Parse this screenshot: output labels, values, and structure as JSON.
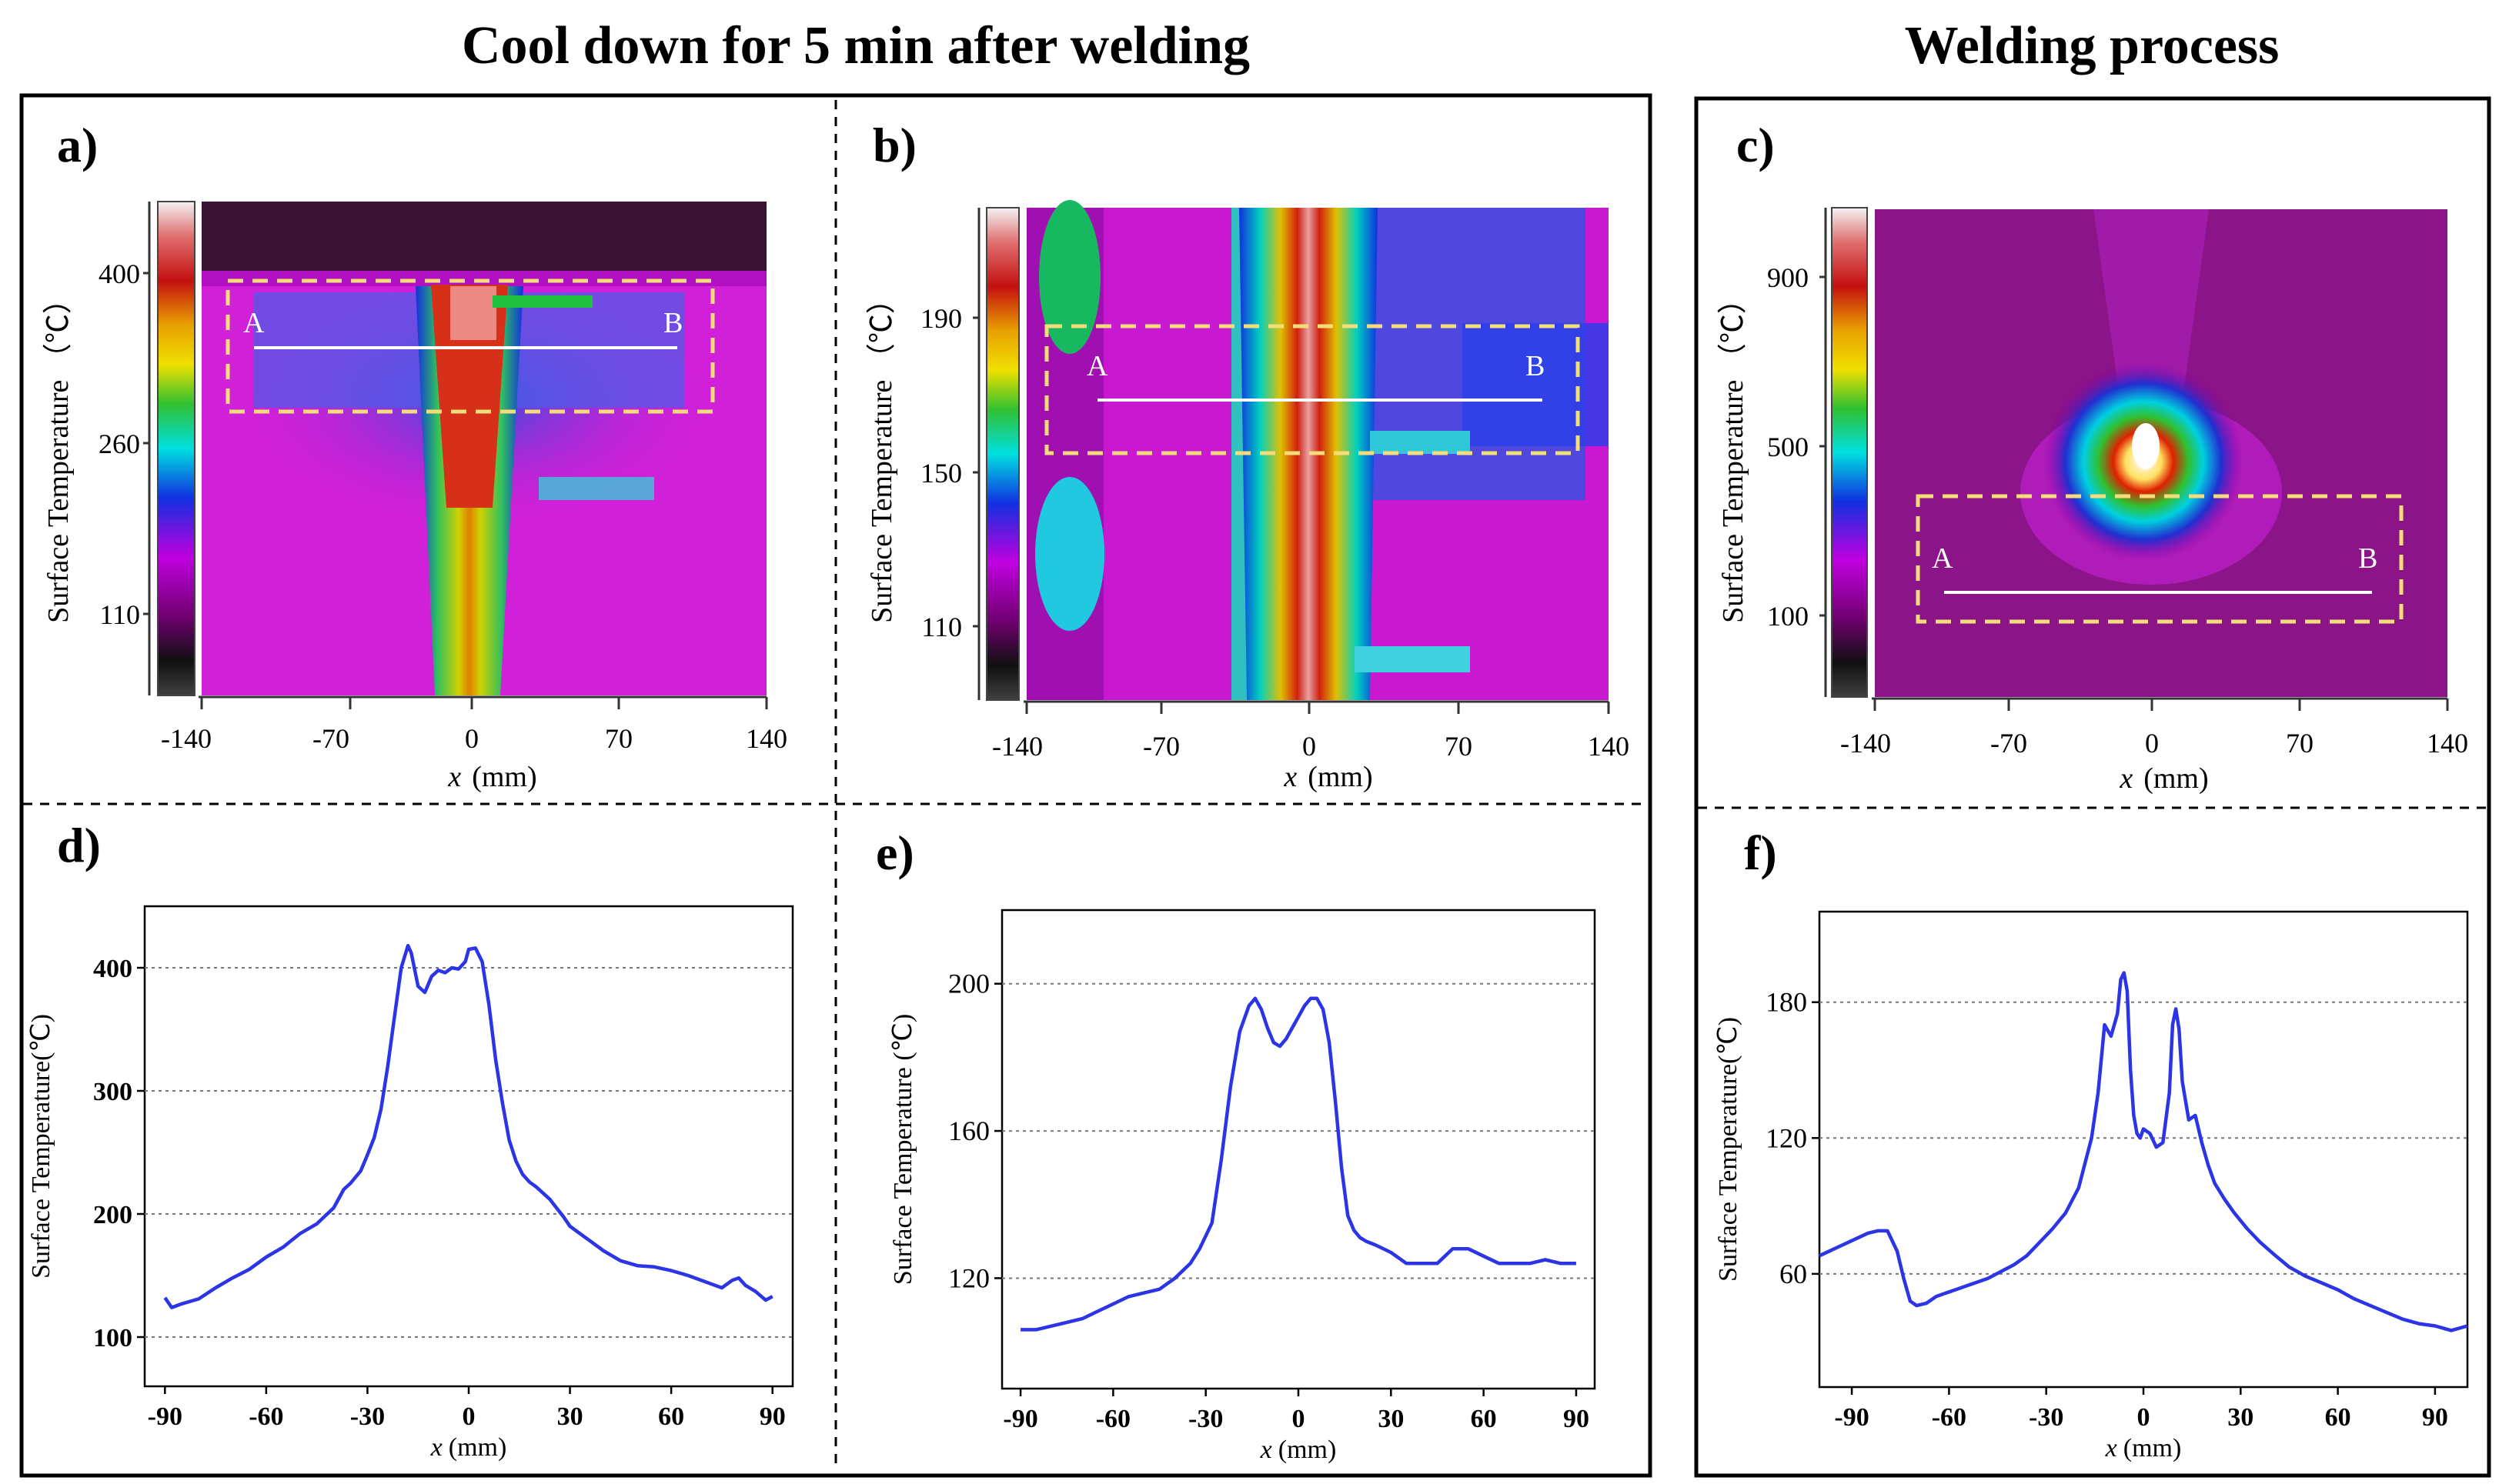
{
  "titles": {
    "cool": "Cool down for 5 min after welding",
    "weld": "Welding process"
  },
  "panel_labels": [
    "a)",
    "b)",
    "c)",
    "d)",
    "e)",
    "f)"
  ],
  "thermal": [
    {
      "id": "a",
      "colorbar_label": "Surface Temperature （℃）",
      "colorbar_ticks": [
        "400",
        "260",
        "110"
      ],
      "x_ticks": [
        "-140",
        "-70",
        "0",
        "70",
        "140"
      ],
      "x_label_var": "x",
      "x_label_unit": "(mm)",
      "line_start": "A",
      "line_end": "B"
    },
    {
      "id": "b",
      "colorbar_label": "Surface Temperature （℃）",
      "colorbar_ticks": [
        "190",
        "150",
        "110"
      ],
      "x_ticks": [
        "-140",
        "-70",
        "0",
        "70",
        "140"
      ],
      "x_label_var": "x",
      "x_label_unit": "(mm)",
      "line_start": "A",
      "line_end": "B"
    },
    {
      "id": "c",
      "colorbar_label": "Surface Temperature （℃）",
      "colorbar_ticks": [
        "900",
        "500",
        "100"
      ],
      "x_ticks": [
        "-140",
        "-70",
        "0",
        "70",
        "140"
      ],
      "x_label_var": "x",
      "x_label_unit": "(mm)",
      "line_start": "A",
      "line_end": "B"
    }
  ],
  "chart_data": [
    {
      "id": "d",
      "type": "line",
      "xlabel_var": "x",
      "xlabel_unit": "(mm)",
      "ylabel": "Surface Temperature(℃)",
      "xlim": [
        -96,
        96
      ],
      "ylim": [
        60,
        450
      ],
      "x_ticks": [
        "-90",
        "-60",
        "-30",
        "0",
        "30",
        "60",
        "90"
      ],
      "y_ticks": [
        "100",
        "200",
        "300",
        "400"
      ],
      "grid": "horizontal dotted",
      "line_color": "#2b35e6",
      "x": [
        -90,
        -88,
        -85,
        -80,
        -75,
        -70,
        -65,
        -60,
        -55,
        -50,
        -45,
        -40,
        -37,
        -35,
        -32,
        -30,
        -28,
        -26,
        -24,
        -22,
        -20,
        -18,
        -17,
        -15,
        -13,
        -11,
        -9,
        -7,
        -5,
        -3,
        -1,
        0,
        2,
        4,
        6,
        8,
        10,
        12,
        14,
        16,
        18,
        20,
        22,
        24,
        26,
        28,
        30,
        35,
        40,
        45,
        50,
        55,
        60,
        65,
        70,
        75,
        78,
        80,
        82,
        85,
        88,
        90
      ],
      "values": [
        132,
        124,
        127,
        131,
        140,
        148,
        155,
        165,
        173,
        184,
        192,
        205,
        220,
        225,
        235,
        248,
        262,
        285,
        320,
        360,
        400,
        418,
        412,
        385,
        380,
        393,
        398,
        396,
        400,
        399,
        405,
        415,
        416,
        405,
        370,
        325,
        290,
        260,
        243,
        232,
        226,
        222,
        217,
        212,
        205,
        198,
        190,
        180,
        170,
        162,
        158,
        157,
        154,
        150,
        145,
        140,
        146,
        148,
        142,
        137,
        130,
        133
      ]
    },
    {
      "id": "e",
      "type": "line",
      "xlabel_var": "x",
      "xlabel_unit": "(mm)",
      "ylabel": "Surface Temperature (℃)",
      "xlim": [
        -96,
        96
      ],
      "ylim": [
        90,
        220
      ],
      "x_ticks": [
        "-90",
        "-60",
        "-30",
        "0",
        "30",
        "60",
        "90"
      ],
      "y_ticks": [
        "120",
        "160",
        "200"
      ],
      "grid": "horizontal dotted",
      "line_color": "#2b35e6",
      "x": [
        -90,
        -85,
        -80,
        -75,
        -70,
        -65,
        -60,
        -55,
        -50,
        -45,
        -40,
        -35,
        -32,
        -28,
        -25,
        -22,
        -19,
        -16,
        -14,
        -12,
        -10,
        -8,
        -6,
        -4,
        -2,
        0,
        2,
        4,
        6,
        8,
        10,
        12,
        14,
        16,
        18,
        20,
        22,
        25,
        30,
        35,
        40,
        45,
        50,
        55,
        60,
        65,
        70,
        75,
        80,
        85,
        90
      ],
      "values": [
        106,
        106,
        107,
        108,
        109,
        111,
        113,
        115,
        116,
        117,
        120,
        124,
        128,
        135,
        152,
        172,
        187,
        194,
        196,
        193,
        188,
        184,
        183,
        185,
        188,
        191,
        194,
        196,
        196,
        193,
        184,
        168,
        150,
        137,
        133,
        131,
        130,
        129,
        127,
        124,
        124,
        124,
        128,
        128,
        126,
        124,
        124,
        124,
        125,
        124,
        124
      ]
    },
    {
      "id": "f",
      "type": "line",
      "xlabel_var": "x",
      "xlabel_unit": "(mm)",
      "ylabel": "Surface Temperature(℃)",
      "xlim": [
        -100,
        100
      ],
      "ylim": [
        10,
        220
      ],
      "x_ticks": [
        "-90",
        "-60",
        "-30",
        "0",
        "30",
        "60",
        "90"
      ],
      "y_ticks": [
        "60",
        "120",
        "180"
      ],
      "grid": "horizontal dotted",
      "line_color": "#2b35e6",
      "x": [
        -100,
        -97,
        -94,
        -91,
        -88,
        -85,
        -82,
        -79,
        -76,
        -74,
        -72,
        -70,
        -67,
        -64,
        -60,
        -56,
        -52,
        -48,
        -44,
        -40,
        -36,
        -32,
        -28,
        -24,
        -20,
        -16,
        -14,
        -12,
        -10,
        -8,
        -7,
        -6,
        -5,
        -4,
        -3,
        -2,
        -1,
        0,
        2,
        4,
        6,
        8,
        9,
        10,
        11,
        12,
        14,
        16,
        18,
        20,
        22,
        25,
        28,
        32,
        36,
        40,
        45,
        50,
        55,
        60,
        65,
        70,
        75,
        80,
        85,
        90,
        95,
        100
      ],
      "values": [
        68,
        70,
        72,
        74,
        76,
        78,
        79,
        79,
        70,
        58,
        48,
        46,
        47,
        50,
        52,
        54,
        56,
        58,
        61,
        64,
        68,
        74,
        80,
        87,
        98,
        120,
        140,
        170,
        165,
        175,
        190,
        193,
        185,
        150,
        130,
        122,
        120,
        124,
        122,
        116,
        118,
        140,
        170,
        177,
        168,
        145,
        128,
        130,
        118,
        108,
        100,
        93,
        87,
        80,
        74,
        69,
        63,
        59,
        56,
        53,
        49,
        46,
        43,
        40,
        38,
        37,
        35,
        37
      ]
    }
  ]
}
